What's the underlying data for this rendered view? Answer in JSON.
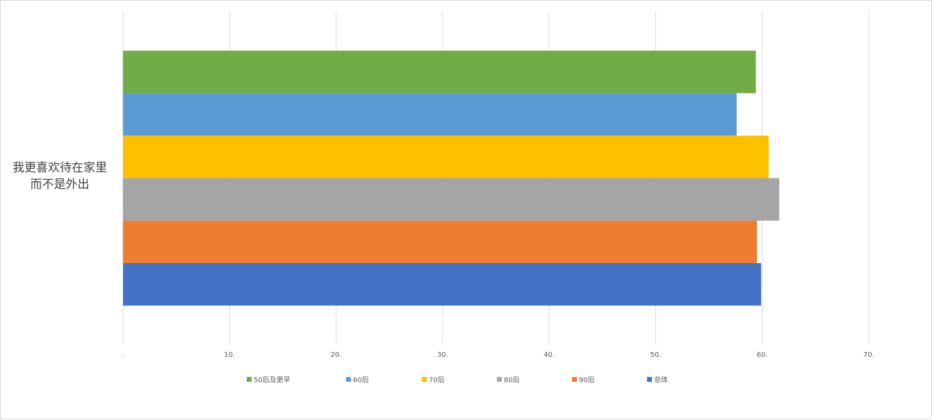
{
  "chart_data": {
    "type": "bar",
    "orientation": "horizontal",
    "categories": [
      "我更喜欢待在家里而不是外出"
    ],
    "category_lines": [
      "我更喜欢待在家里",
      "而不是外出"
    ],
    "series": [
      {
        "name": "50后及更早",
        "values": [
          59.4
        ],
        "color": "#70ad47"
      },
      {
        "name": "60后",
        "values": [
          57.6
        ],
        "color": "#5b9bd5"
      },
      {
        "name": "70后",
        "values": [
          60.6
        ],
        "color": "#ffc000"
      },
      {
        "name": "80后",
        "values": [
          61.6
        ],
        "color": "#a5a5a5"
      },
      {
        "name": "90后",
        "values": [
          59.5
        ],
        "color": "#ed7d31"
      },
      {
        "name": "总体",
        "values": [
          59.9
        ],
        "color": "#4472c4"
      }
    ],
    "xlim": [
      0,
      70
    ],
    "xticks": [
      0,
      10,
      20,
      30,
      40,
      50,
      60,
      70
    ],
    "xtick_labels": [
      ".",
      "10.",
      "20.",
      "30.",
      "40.",
      "50.",
      "60.",
      "70."
    ],
    "grid": true,
    "legend_position": "bottom"
  }
}
